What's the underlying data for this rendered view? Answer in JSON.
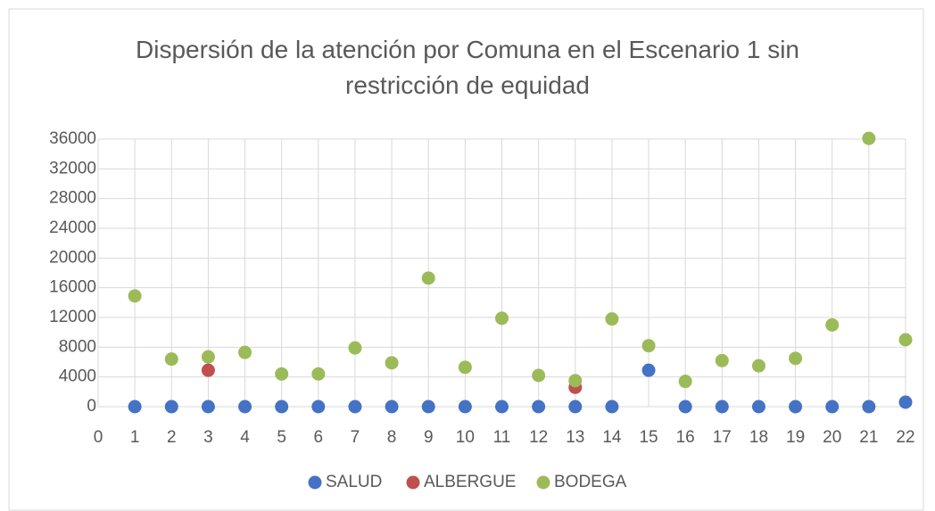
{
  "chart_data": {
    "type": "scatter",
    "title": "Dispersión de la atención por Comuna en el Escenario 1 sin restricción de equidad",
    "series": [
      {
        "name": "SALUD",
        "color": "#4472c4",
        "x": [
          1,
          2,
          3,
          4,
          5,
          6,
          7,
          8,
          9,
          10,
          11,
          12,
          13,
          14,
          15,
          16,
          17,
          18,
          19,
          20,
          21,
          22
        ],
        "values": [
          0,
          0,
          0,
          0,
          0,
          0,
          0,
          0,
          0,
          0,
          0,
          0,
          0,
          0,
          4900,
          0,
          0,
          0,
          0,
          0,
          0,
          600
        ]
      },
      {
        "name": "ALBERGUE",
        "color": "#c0504d",
        "x": [
          3,
          13
        ],
        "values": [
          4900,
          2600
        ]
      },
      {
        "name": "BODEGA",
        "color": "#9bbb59",
        "x": [
          1,
          2,
          3,
          4,
          5,
          6,
          7,
          8,
          9,
          10,
          11,
          12,
          13,
          14,
          15,
          16,
          17,
          18,
          19,
          20,
          21,
          22
        ],
        "values": [
          14900,
          6400,
          6700,
          7300,
          4400,
          4400,
          7900,
          5900,
          17300,
          5300,
          11900,
          4200,
          3500,
          11800,
          8200,
          3400,
          6200,
          5500,
          6500,
          11000,
          36100,
          9000
        ]
      }
    ],
    "xlim": [
      0,
      22
    ],
    "xticks": [
      0,
      1,
      2,
      3,
      4,
      5,
      6,
      7,
      8,
      9,
      10,
      11,
      12,
      13,
      14,
      15,
      16,
      17,
      18,
      19,
      20,
      21,
      22
    ],
    "ylim": [
      0,
      36000
    ],
    "yticks": [
      0,
      4000,
      8000,
      12000,
      16000,
      20000,
      24000,
      28000,
      32000,
      36000
    ],
    "grid": true,
    "legend": "bottom"
  }
}
